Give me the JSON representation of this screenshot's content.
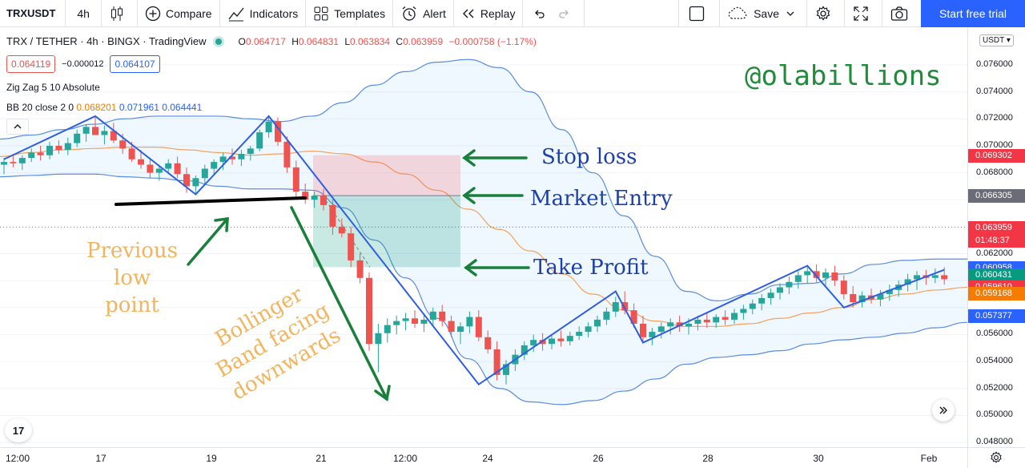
{
  "toolbar": {
    "symbol": "TRXUSDT",
    "interval": "4h",
    "compare_label": "Compare",
    "indicators_label": "Indicators",
    "templates_label": "Templates",
    "alert_label": "Alert",
    "replay_label": "Replay",
    "save_label": "Save",
    "start_trial_label": "Start free trial"
  },
  "legend": {
    "title": "TRX / TETHER · 4h · BINGX · TradingView",
    "open_key": "O",
    "open": "0.064717",
    "high_key": "H",
    "high": "0.064831",
    "low_key": "L",
    "low": "0.063834",
    "close_key": "C",
    "close": "0.063959",
    "change": "−0.000758 (−1.17%)",
    "sell_price": "0.064119",
    "spread": "−0.000012",
    "buy_price": "0.064107"
  },
  "indicators": {
    "zigzag": "Zig Zag 5 10 Absolute",
    "bb_name": "BB 20 close 2 0",
    "bb_basis": "0.068201",
    "bb_upper": "0.071961",
    "bb_lower": "0.064441"
  },
  "annotations": {
    "watermark": "@olabillions",
    "stop_loss": "Stop loss",
    "market_entry": "Market Entry",
    "take_profit": "Take Profit",
    "previous_low_1": "Previous low",
    "previous_low_2": "point",
    "bollinger_1": "Bollinger",
    "bollinger_2": "Band facing",
    "bollinger_3": "downwards"
  },
  "price_axis": {
    "currency": "USDT",
    "ticks": [
      "0.076000",
      "0.074000",
      "0.072000",
      "0.070000",
      "0.068000",
      "0.066000",
      "0.062000",
      "0.060000",
      "0.056000",
      "0.054000",
      "0.052000",
      "0.050000",
      "0.048000"
    ],
    "labels": [
      {
        "value": "0.069302",
        "color": "#f23645"
      },
      {
        "value": "0.066305",
        "color": "#6a6d78"
      },
      {
        "value": "0.063959",
        "color": "#f23645"
      },
      {
        "value": "01:48:37",
        "color": "#f23645"
      },
      {
        "value": "0.060958",
        "color": "#2962ff"
      },
      {
        "value": "0.060431",
        "color": "#089981"
      },
      {
        "value": "0.059610",
        "color": "#f23645"
      },
      {
        "value": "0.059168",
        "color": "#f57c00"
      },
      {
        "value": "0.057377",
        "color": "#2962ff"
      }
    ]
  },
  "time_axis": {
    "ticks": [
      "12:00",
      "17",
      "19",
      "21",
      "12:00",
      "24",
      "26",
      "28",
      "30",
      "Feb"
    ]
  },
  "chart_data": {
    "type": "candlestick",
    "symbol": "TRX / TETHER",
    "interval": "4h",
    "ylim": [
      0.048,
      0.077
    ],
    "candles": [
      [
        0.0686,
        0.0691,
        0.0679,
        0.0688
      ],
      [
        0.0688,
        0.0694,
        0.0684,
        0.0687
      ],
      [
        0.0687,
        0.0693,
        0.0682,
        0.0691
      ],
      [
        0.0691,
        0.0698,
        0.0688,
        0.0695
      ],
      [
        0.0695,
        0.07,
        0.0689,
        0.0693
      ],
      [
        0.0693,
        0.0703,
        0.069,
        0.07
      ],
      [
        0.07,
        0.0704,
        0.0694,
        0.0697
      ],
      [
        0.0697,
        0.0706,
        0.0693,
        0.0702
      ],
      [
        0.0702,
        0.0712,
        0.0699,
        0.0709
      ],
      [
        0.0709,
        0.0716,
        0.0703,
        0.0714
      ],
      [
        0.0714,
        0.0722,
        0.071,
        0.0708
      ],
      [
        0.0708,
        0.0715,
        0.0701,
        0.0711
      ],
      [
        0.0711,
        0.0717,
        0.0702,
        0.0704
      ],
      [
        0.0704,
        0.0709,
        0.0694,
        0.0698
      ],
      [
        0.0698,
        0.0703,
        0.0688,
        0.069
      ],
      [
        0.069,
        0.0697,
        0.0683,
        0.0686
      ],
      [
        0.0686,
        0.0691,
        0.0676,
        0.068
      ],
      [
        0.068,
        0.0686,
        0.0674,
        0.0683
      ],
      [
        0.0683,
        0.069,
        0.0679,
        0.0687
      ],
      [
        0.0687,
        0.0692,
        0.0676,
        0.0679
      ],
      [
        0.0679,
        0.0684,
        0.0665,
        0.067
      ],
      [
        0.067,
        0.0678,
        0.0664,
        0.0676
      ],
      [
        0.0676,
        0.0686,
        0.0672,
        0.0683
      ],
      [
        0.0683,
        0.069,
        0.0678,
        0.0688
      ],
      [
        0.0688,
        0.0695,
        0.0682,
        0.0692
      ],
      [
        0.0692,
        0.0698,
        0.0686,
        0.069
      ],
      [
        0.069,
        0.0697,
        0.0685,
        0.0694
      ],
      [
        0.0694,
        0.07,
        0.0689,
        0.0698
      ],
      [
        0.0698,
        0.0712,
        0.0696,
        0.071
      ],
      [
        0.071,
        0.0722,
        0.0706,
        0.0718
      ],
      [
        0.0718,
        0.0721,
        0.07,
        0.0703
      ],
      [
        0.0703,
        0.0707,
        0.068,
        0.0684
      ],
      [
        0.0684,
        0.0689,
        0.0662,
        0.0666
      ],
      [
        0.0666,
        0.0672,
        0.0657,
        0.066
      ],
      [
        0.066,
        0.0666,
        0.0654,
        0.0663
      ],
      [
        0.0663,
        0.0668,
        0.0652,
        0.0656
      ],
      [
        0.0656,
        0.066,
        0.0634,
        0.064
      ],
      [
        0.064,
        0.0646,
        0.0632,
        0.0635
      ],
      [
        0.0635,
        0.064,
        0.061,
        0.0615
      ],
      [
        0.0615,
        0.062,
        0.0598,
        0.0602
      ],
      [
        0.0602,
        0.0606,
        0.0548,
        0.0553
      ],
      [
        0.0553,
        0.0568,
        0.0532,
        0.0561
      ],
      [
        0.0561,
        0.0572,
        0.0554,
        0.0567
      ],
      [
        0.0567,
        0.0574,
        0.056,
        0.057
      ],
      [
        0.057,
        0.0576,
        0.0563,
        0.0572
      ],
      [
        0.0572,
        0.0578,
        0.0565,
        0.0568
      ],
      [
        0.0568,
        0.0575,
        0.0562,
        0.0571
      ],
      [
        0.0571,
        0.058,
        0.0567,
        0.0577
      ],
      [
        0.0577,
        0.0582,
        0.0566,
        0.057
      ],
      [
        0.057,
        0.0574,
        0.0558,
        0.0562
      ],
      [
        0.0562,
        0.0569,
        0.0553,
        0.0566
      ],
      [
        0.0566,
        0.0577,
        0.0561,
        0.0573
      ],
      [
        0.0573,
        0.0578,
        0.0555,
        0.0558
      ],
      [
        0.0558,
        0.0563,
        0.0546,
        0.0549
      ],
      [
        0.0549,
        0.0555,
        0.0526,
        0.053
      ],
      [
        0.053,
        0.0541,
        0.0523,
        0.0538
      ],
      [
        0.0538,
        0.0549,
        0.0533,
        0.0545
      ],
      [
        0.0545,
        0.0555,
        0.0541,
        0.0552
      ],
      [
        0.0552,
        0.056,
        0.0547,
        0.0556
      ],
      [
        0.0556,
        0.0561,
        0.0548,
        0.0553
      ],
      [
        0.0553,
        0.056,
        0.0549,
        0.0557
      ],
      [
        0.0557,
        0.0563,
        0.0551,
        0.0555
      ],
      [
        0.0555,
        0.0562,
        0.0552,
        0.0559
      ],
      [
        0.0559,
        0.0566,
        0.0556,
        0.0562
      ],
      [
        0.0562,
        0.0569,
        0.0558,
        0.0566
      ],
      [
        0.0566,
        0.0574,
        0.0562,
        0.0571
      ],
      [
        0.0571,
        0.058,
        0.0567,
        0.0577
      ],
      [
        0.0577,
        0.0588,
        0.0573,
        0.0584
      ],
      [
        0.0584,
        0.0592,
        0.0575,
        0.0578
      ],
      [
        0.0578,
        0.0583,
        0.0565,
        0.0568
      ],
      [
        0.0568,
        0.0574,
        0.0554,
        0.0558
      ],
      [
        0.0558,
        0.0565,
        0.0552,
        0.0562
      ],
      [
        0.0562,
        0.0569,
        0.0557,
        0.0566
      ],
      [
        0.0566,
        0.0572,
        0.056,
        0.0569
      ],
      [
        0.0569,
        0.0574,
        0.0562,
        0.0566
      ],
      [
        0.0566,
        0.0572,
        0.056,
        0.0568
      ],
      [
        0.0568,
        0.0574,
        0.0563,
        0.0571
      ],
      [
        0.0571,
        0.0576,
        0.0565,
        0.0569
      ],
      [
        0.0569,
        0.0575,
        0.0565,
        0.0573
      ],
      [
        0.0573,
        0.0578,
        0.0567,
        0.0571
      ],
      [
        0.0571,
        0.0579,
        0.0568,
        0.0576
      ],
      [
        0.0576,
        0.0582,
        0.0571,
        0.0579
      ],
      [
        0.0579,
        0.0586,
        0.0575,
        0.0583
      ],
      [
        0.0583,
        0.059,
        0.0578,
        0.0587
      ],
      [
        0.0587,
        0.0594,
        0.0582,
        0.0591
      ],
      [
        0.0591,
        0.0598,
        0.0586,
        0.0595
      ],
      [
        0.0595,
        0.0603,
        0.059,
        0.0599
      ],
      [
        0.0599,
        0.0607,
        0.0594,
        0.0604
      ],
      [
        0.0604,
        0.0611,
        0.0598,
        0.0607
      ],
      [
        0.0607,
        0.0612,
        0.0599,
        0.0602
      ],
      [
        0.0602,
        0.0609,
        0.0596,
        0.0606
      ],
      [
        0.0606,
        0.0611,
        0.0596,
        0.06
      ],
      [
        0.06,
        0.0604,
        0.0586,
        0.059
      ],
      [
        0.059,
        0.0596,
        0.058,
        0.0584
      ],
      [
        0.0584,
        0.0592,
        0.058,
        0.0589
      ],
      [
        0.0589,
        0.0594,
        0.0583,
        0.0586
      ],
      [
        0.0586,
        0.0593,
        0.0581,
        0.059
      ],
      [
        0.059,
        0.0597,
        0.0585,
        0.0593
      ],
      [
        0.0593,
        0.06,
        0.0588,
        0.0597
      ],
      [
        0.0597,
        0.0605,
        0.0592,
        0.0601
      ],
      [
        0.0601,
        0.0607,
        0.0593,
        0.0604
      ],
      [
        0.0604,
        0.0608,
        0.0597,
        0.0602
      ],
      [
        0.0602,
        0.0609,
        0.0598,
        0.0604
      ],
      [
        0.0604,
        0.061,
        0.0597,
        0.0601
      ]
    ],
    "zigzag": [
      [
        0,
        0.069
      ],
      [
        10,
        0.0722
      ],
      [
        21,
        0.0664
      ],
      [
        29,
        0.0722
      ],
      [
        52,
        0.0523
      ],
      [
        67,
        0.0592
      ],
      [
        70,
        0.0554
      ],
      [
        88,
        0.0611
      ],
      [
        92,
        0.058
      ],
      [
        103,
        0.0608
      ]
    ],
    "bands": {
      "upper": [
        0.0705,
        0.0708,
        0.0712,
        0.0716,
        0.072,
        0.0722,
        0.0722,
        0.0722,
        0.072,
        0.0718,
        0.0722,
        0.0732,
        0.0745,
        0.0755,
        0.0762,
        0.0764,
        0.0758,
        0.074,
        0.0712,
        0.068,
        0.0648,
        0.0618,
        0.0592,
        0.0585,
        0.059,
        0.0597,
        0.0598,
        0.0605,
        0.0612,
        0.0615,
        0.0616,
        0.0616
      ],
      "basis": [
        0.0692,
        0.0695,
        0.0697,
        0.0698,
        0.0699,
        0.0699,
        0.0697,
        0.0695,
        0.0693,
        0.0694,
        0.0696,
        0.0694,
        0.0688,
        0.0679,
        0.0667,
        0.0653,
        0.0638,
        0.0622,
        0.0605,
        0.059,
        0.0578,
        0.057,
        0.0566,
        0.0566,
        0.0568,
        0.0572,
        0.0576,
        0.058,
        0.0586,
        0.059,
        0.0593,
        0.0595
      ],
      "lower": [
        0.0677,
        0.0678,
        0.0679,
        0.0679,
        0.0677,
        0.0676,
        0.0674,
        0.067,
        0.0668,
        0.0668,
        0.0667,
        0.0654,
        0.063,
        0.0602,
        0.0572,
        0.0542,
        0.052,
        0.051,
        0.0508,
        0.0511,
        0.0518,
        0.0527,
        0.0538,
        0.0543,
        0.0545,
        0.0548,
        0.0553,
        0.0556,
        0.0558,
        0.0561,
        0.0565,
        0.0569
      ]
    },
    "position": {
      "stop": 0.0693,
      "entry": 0.0663,
      "target": 0.061
    },
    "last_price": 0.063959
  }
}
